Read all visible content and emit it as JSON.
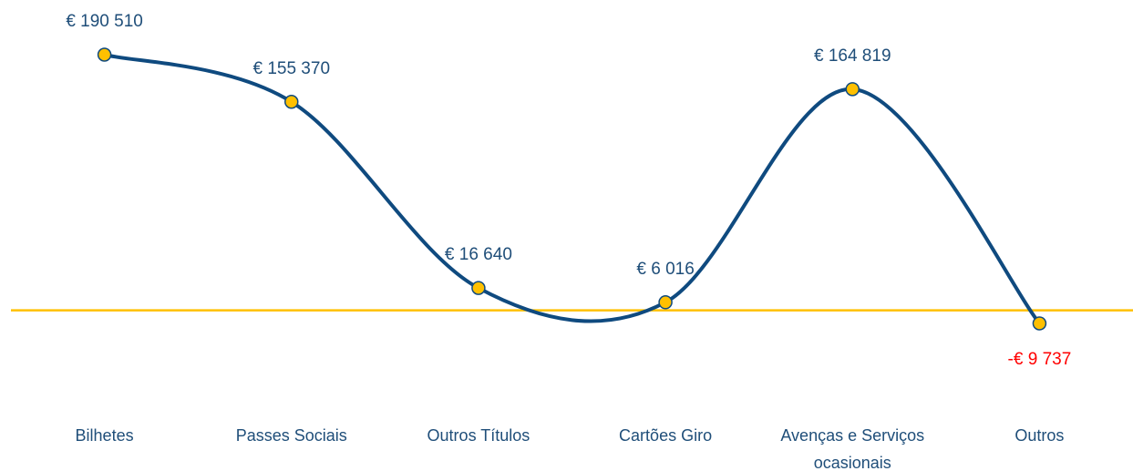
{
  "chart_data": {
    "type": "line",
    "categories": [
      "Bilhetes",
      "Passes Sociais",
      "Outros Títulos",
      "Cartões Giro",
      "Avenças e Serviços ocasionais",
      "Outros"
    ],
    "values": [
      190510,
      155370,
      16640,
      6016,
      164819,
      -9737
    ],
    "value_labels": [
      "€ 190 510",
      "€ 155 370",
      "€ 16 640",
      "€ 6 016",
      "€ 164 819",
      "-€ 9 737"
    ],
    "color": "#0f4a7f",
    "marker_color": "#ffc000",
    "zero_line_color": "#ffc000",
    "label_color": "#1f4e79",
    "negative_label_color": "#ff0000",
    "smooth": true
  }
}
